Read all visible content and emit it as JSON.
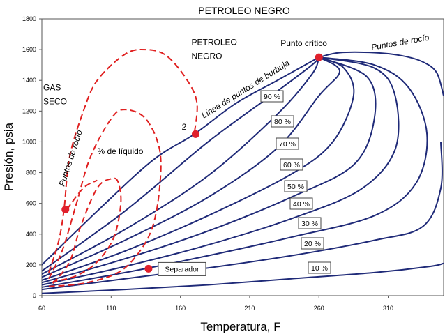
{
  "chart_data": {
    "type": "line",
    "title": "PETROLEO NEGRO",
    "xlabel": "Temperatura, F",
    "ylabel": "Presión, psia",
    "xlim": [
      60,
      350
    ],
    "ylim": [
      0,
      1800
    ],
    "x_ticks": [
      60,
      110,
      160,
      210,
      260,
      310
    ],
    "y_ticks": [
      0,
      200,
      400,
      600,
      800,
      1000,
      1200,
      1400,
      1600,
      1800
    ],
    "grid": false,
    "colors": {
      "isolines": "#1f2a78",
      "dashed": "#e02020",
      "points": "#e0202c"
    },
    "critical_point": {
      "label": "Punto crítico",
      "x": 260,
      "y": 1550
    },
    "series": [
      {
        "name": "Línea de puntos de burbuja",
        "points": [
          [
            60,
            200
          ],
          [
            100,
            550
          ],
          [
            140,
            880
          ],
          [
            170,
            1050
          ],
          [
            200,
            1250
          ],
          [
            230,
            1400
          ],
          [
            260,
            1550
          ]
        ]
      },
      {
        "name": "Puntos de rocío",
        "points": [
          [
            260,
            1550
          ],
          [
            275,
            1580
          ],
          [
            300,
            1580
          ],
          [
            320,
            1560
          ],
          [
            335,
            1520
          ],
          [
            345,
            1450
          ],
          [
            350,
            1300
          ]
        ]
      },
      {
        "name": "90 %",
        "points": [
          [
            60,
            160
          ],
          [
            120,
            550
          ],
          [
            180,
            1000
          ],
          [
            230,
            1330
          ],
          [
            255,
            1500
          ],
          [
            260,
            1550
          ]
        ]
      },
      {
        "name": "80 %",
        "points": [
          [
            60,
            140
          ],
          [
            120,
            430
          ],
          [
            180,
            780
          ],
          [
            230,
            1180
          ],
          [
            255,
            1440
          ],
          [
            260,
            1550
          ]
        ]
      },
      {
        "name": "70 %",
        "points": [
          [
            60,
            120
          ],
          [
            120,
            360
          ],
          [
            180,
            640
          ],
          [
            230,
            960
          ],
          [
            260,
            1300
          ],
          [
            275,
            1460
          ],
          [
            260,
            1550
          ]
        ]
      },
      {
        "name": "60 %",
        "points": [
          [
            60,
            100
          ],
          [
            120,
            290
          ],
          [
            180,
            520
          ],
          [
            240,
            790
          ],
          [
            270,
            1000
          ],
          [
            285,
            1300
          ],
          [
            278,
            1480
          ],
          [
            260,
            1550
          ]
        ]
      },
      {
        "name": "50 %",
        "points": [
          [
            60,
            85
          ],
          [
            120,
            240
          ],
          [
            180,
            420
          ],
          [
            240,
            640
          ],
          [
            285,
            850
          ],
          [
            300,
            1150
          ],
          [
            295,
            1420
          ],
          [
            260,
            1550
          ]
        ]
      },
      {
        "name": "40 %",
        "points": [
          [
            60,
            70
          ],
          [
            120,
            190
          ],
          [
            180,
            330
          ],
          [
            240,
            500
          ],
          [
            290,
            690
          ],
          [
            315,
            950
          ],
          [
            315,
            1300
          ],
          [
            300,
            1480
          ],
          [
            260,
            1550
          ]
        ]
      },
      {
        "name": "30 %",
        "points": [
          [
            60,
            55
          ],
          [
            120,
            150
          ],
          [
            180,
            260
          ],
          [
            240,
            380
          ],
          [
            300,
            520
          ],
          [
            330,
            730
          ],
          [
            338,
            1050
          ],
          [
            325,
            1350
          ],
          [
            300,
            1500
          ],
          [
            260,
            1550
          ]
        ]
      },
      {
        "name": "20 %",
        "points": [
          [
            60,
            40
          ],
          [
            120,
            110
          ],
          [
            180,
            180
          ],
          [
            240,
            260
          ],
          [
            300,
            360
          ],
          [
            335,
            450
          ],
          [
            348,
            700
          ],
          [
            348,
            1000
          ]
        ]
      },
      {
        "name": "10 %",
        "points": [
          [
            60,
            15
          ],
          [
            120,
            40
          ],
          [
            180,
            70
          ],
          [
            240,
            110
          ],
          [
            300,
            150
          ],
          [
            340,
            190
          ],
          [
            350,
            210
          ]
        ]
      }
    ],
    "dashed_series": [
      {
        "name": "Puntos de rocío",
        "points": [
          [
            65,
            150
          ],
          [
            72,
            350
          ],
          [
            76,
            560
          ],
          [
            80,
            900
          ],
          [
            90,
            1200
          ],
          [
            100,
            1400
          ],
          [
            120,
            1570
          ],
          [
            135,
            1600
          ],
          [
            150,
            1560
          ],
          [
            165,
            1400
          ],
          [
            172,
            1250
          ],
          [
            170,
            1050
          ]
        ]
      },
      {
        "name": "% de líquido",
        "points": [
          [
            65,
            110
          ],
          [
            75,
            300
          ],
          [
            85,
            600
          ],
          [
            95,
            900
          ],
          [
            110,
            1150
          ],
          [
            120,
            1210
          ],
          [
            135,
            1150
          ],
          [
            145,
            950
          ],
          [
            145,
            700
          ],
          [
            140,
            450
          ],
          [
            130,
            280
          ],
          [
            115,
            150
          ],
          [
            90,
            80
          ],
          [
            65,
            60
          ]
        ]
      },
      {
        "name": "",
        "points": [
          [
            68,
            80
          ],
          [
            80,
            220
          ],
          [
            88,
            450
          ],
          [
            100,
            700
          ],
          [
            110,
            760
          ],
          [
            115,
            740
          ],
          [
            117,
            600
          ],
          [
            112,
            380
          ],
          [
            100,
            220
          ],
          [
            85,
            130
          ],
          [
            68,
            90
          ]
        ]
      },
      {
        "name": "",
        "points": [
          [
            78,
            560
          ],
          [
            90,
            700
          ],
          [
            100,
            750
          ]
        ]
      }
    ],
    "annotations": [
      {
        "text": "PETROLEO",
        "x": 168,
        "y": 1630
      },
      {
        "text": "NEGRO",
        "x": 168,
        "y": 1540
      },
      {
        "text": "GAS",
        "x": 61,
        "y": 1335
      },
      {
        "text": "SECO",
        "x": 61,
        "y": 1245
      },
      {
        "text": "% de líquido",
        "x": 100,
        "y": 920
      },
      {
        "text": "2",
        "x": 161,
        "y": 1080
      }
    ],
    "points": [
      {
        "label": "",
        "x": 260,
        "y": 1550
      },
      {
        "label": "2",
        "x": 171,
        "y": 1050
      },
      {
        "label": "",
        "x": 77,
        "y": 560
      },
      {
        "label": "Separador",
        "x": 137,
        "y": 175
      }
    ]
  }
}
